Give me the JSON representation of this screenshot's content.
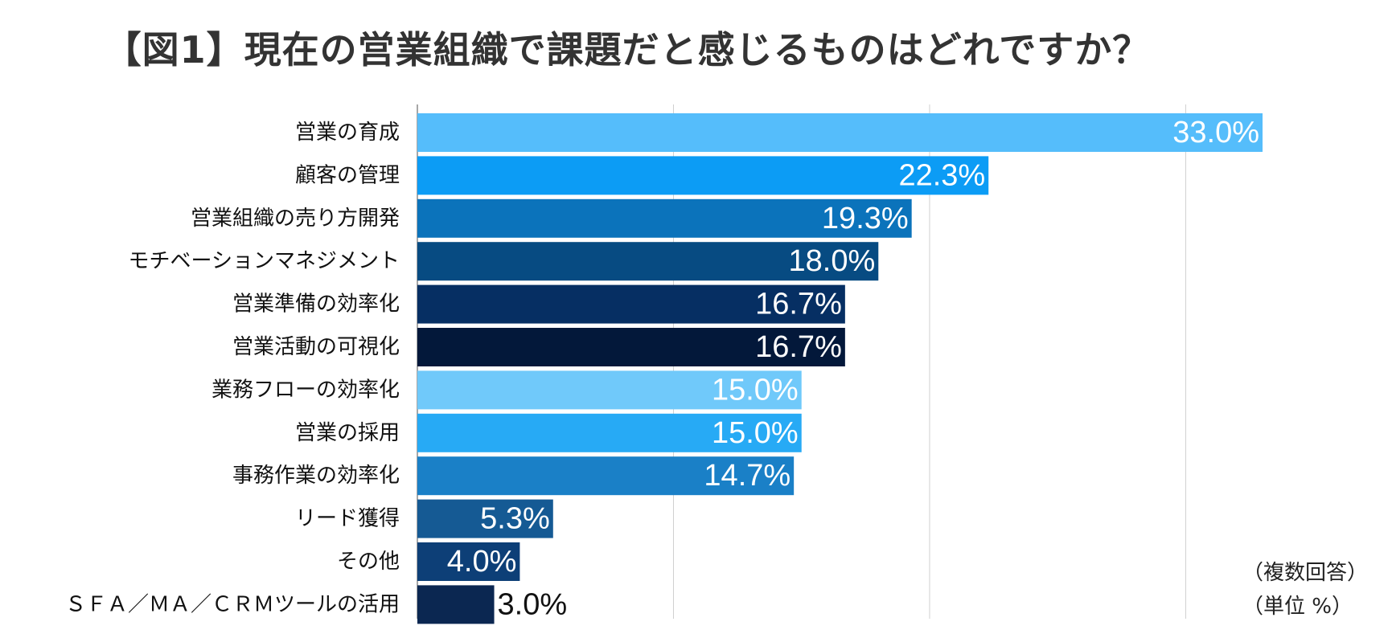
{
  "chart_data": {
    "type": "bar",
    "orientation": "horizontal",
    "title": "【図1】現在の営業組織で課題だと感じるものはどれですか？",
    "categories": [
      "営業の育成",
      "顧客の管理",
      "営業組織の売り方開発",
      "モチベーションマネジメント",
      "営業準備の効率化",
      "営業活動の可視化",
      "業務フローの効率化",
      "営業の採用",
      "事務作業の効率化",
      "リード獲得",
      "その他",
      "ＳＦＡ／ＭＡ／ＣＲＭツールの活用"
    ],
    "values": [
      33.0,
      22.3,
      19.3,
      18.0,
      16.7,
      16.7,
      15.0,
      15.0,
      14.7,
      5.3,
      4.0,
      3.0
    ],
    "data_labels": [
      "33.0%",
      "22.3%",
      "19.3%",
      "18.0%",
      "16.7%",
      "16.7%",
      "15.0%",
      "15.0%",
      "14.7%",
      "5.3%",
      "4.0%",
      "3.0%"
    ],
    "colors": [
      "#55bdfb",
      "#0c9cf5",
      "#0b73bb",
      "#074b82",
      "#062f63",
      "#03183a",
      "#70c9fa",
      "#27aaf5",
      "#1a80c7",
      "#155a94",
      "#0d3f77",
      "#0b2751"
    ],
    "xlim": [
      0,
      40
    ],
    "grid": true,
    "legend": "none"
  },
  "notes": [
    "（複数回答）",
    "（単位 %）"
  ]
}
